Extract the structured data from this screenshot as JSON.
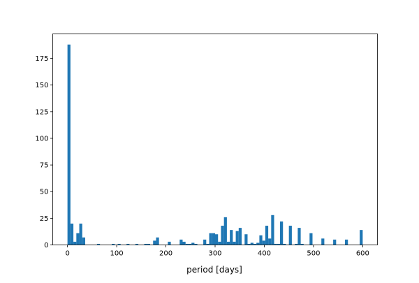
{
  "chart_data": {
    "type": "bar",
    "subtype": "histogram",
    "title": "",
    "xlabel": "period [days]",
    "ylabel": "",
    "xlim": [
      -30,
      630
    ],
    "ylim": [
      0,
      198
    ],
    "bin_start": 0,
    "bin_width": 6,
    "counts": [
      188,
      20,
      3,
      11,
      20,
      7,
      0,
      0,
      0,
      0,
      1,
      0,
      0,
      0,
      0,
      1,
      0,
      1,
      0,
      0,
      1,
      0,
      0,
      1,
      0,
      0,
      1,
      1,
      0,
      4,
      7,
      0,
      0,
      0,
      3,
      0,
      0,
      0,
      5,
      3,
      1,
      1,
      2,
      1,
      0,
      0,
      5,
      1,
      11,
      11,
      10,
      3,
      18,
      26,
      3,
      14,
      3,
      13,
      16,
      0,
      10,
      1,
      2,
      1,
      2,
      9,
      4,
      18,
      6,
      28,
      1,
      1,
      22,
      1,
      0,
      18,
      0,
      1,
      16,
      1,
      0,
      0,
      11,
      0,
      0,
      0,
      6,
      0,
      0,
      0,
      5,
      0,
      0,
      0,
      5,
      0,
      0,
      0,
      0,
      14
    ],
    "xticks": [
      0,
      100,
      200,
      300,
      400,
      500,
      600
    ],
    "yticks": [
      0,
      25,
      50,
      75,
      100,
      125,
      150,
      175
    ],
    "bar_color": "#1f77b4",
    "grid": false
  }
}
